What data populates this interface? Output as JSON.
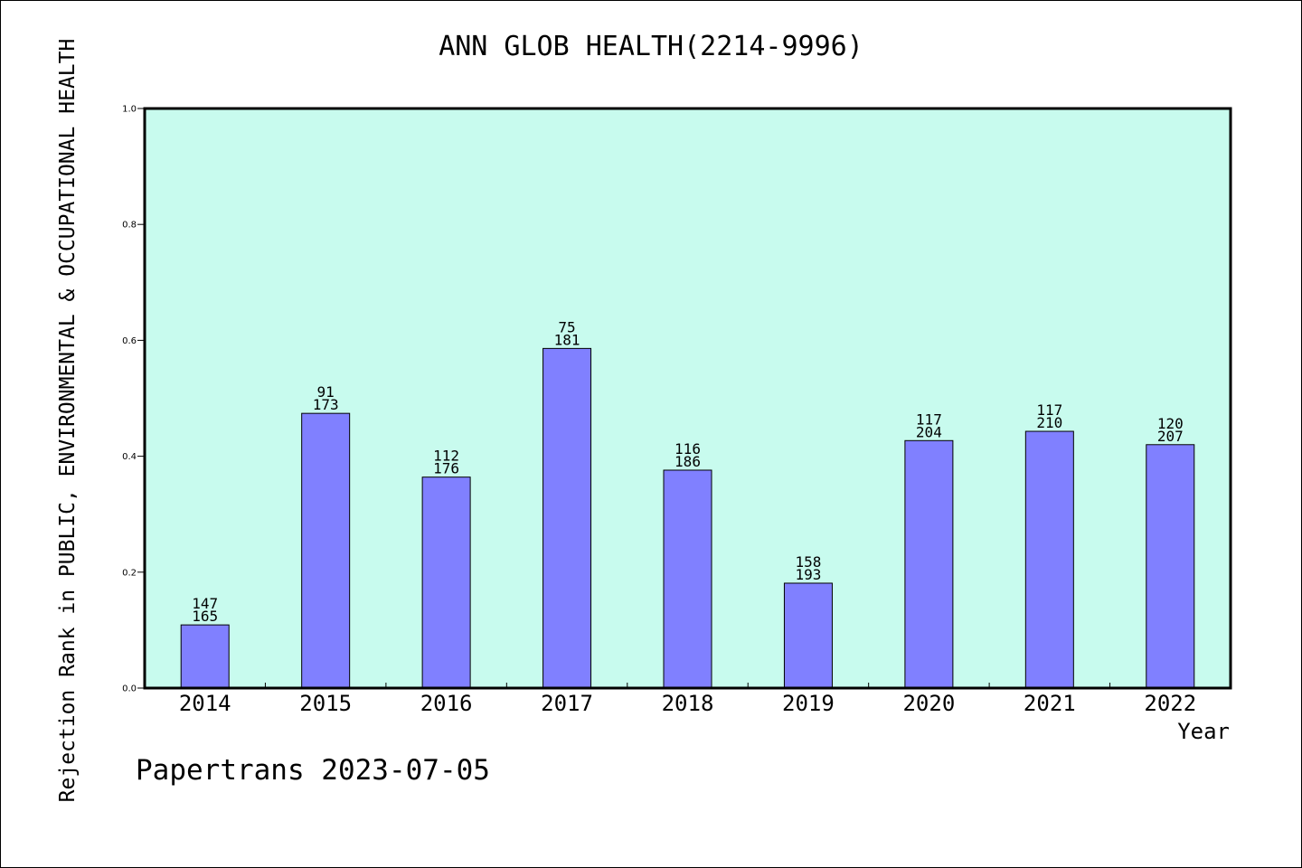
{
  "chart_data": {
    "type": "bar",
    "title": "ANN GLOB HEALTH(2214-9996)",
    "xlabel": "Year",
    "ylabel": "Rejection Rank in PUBLIC, ENVIRONMENTAL & OCCUPATIONAL HEALTH",
    "ylim": [
      0.0,
      1.0
    ],
    "yticks": [
      "0.0",
      "0.2",
      "0.4",
      "0.6",
      "0.8",
      "1.0"
    ],
    "categories": [
      "2014",
      "2015",
      "2016",
      "2017",
      "2018",
      "2019",
      "2020",
      "2021",
      "2022"
    ],
    "values": [
      0.109,
      0.474,
      0.364,
      0.586,
      0.376,
      0.181,
      0.427,
      0.443,
      0.42
    ],
    "rank_labels": [
      "147",
      "91",
      "112",
      "75",
      "116",
      "158",
      "117",
      "117",
      "120"
    ],
    "total_labels": [
      "165",
      "173",
      "176",
      "181",
      "186",
      "193",
      "204",
      "210",
      "207"
    ],
    "grid": false,
    "colors": {
      "plot_background": "#c8fbee",
      "bar_fill": "#8080ff",
      "bar_stroke": "#000000"
    }
  },
  "footer": {
    "note": "Papertrans 2023-07-05"
  }
}
